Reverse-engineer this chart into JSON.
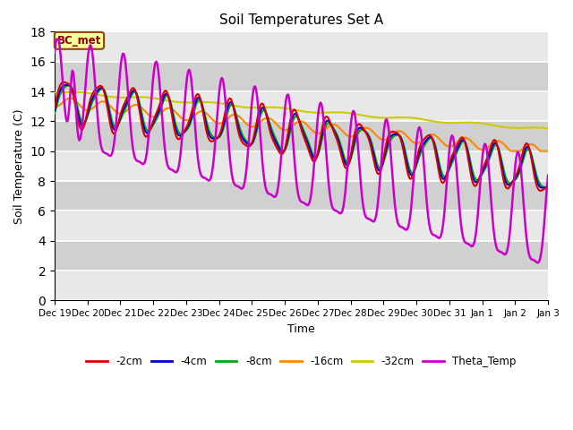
{
  "title": "Soil Temperatures Set A",
  "xlabel": "Time",
  "ylabel": "Soil Temperature (C)",
  "ylim": [
    0,
    18
  ],
  "yticks": [
    0,
    2,
    4,
    6,
    8,
    10,
    12,
    14,
    16,
    18
  ],
  "background_color": "#ffffff",
  "plot_bg_color": "#e0e0e0",
  "band_color_light": "#e8e8e8",
  "band_color_dark": "#d0d0d0",
  "annotation_text": "BC_met",
  "annotation_bg": "#ffff99",
  "annotation_border": "#8b4513",
  "annotation_text_color": "#8b0000",
  "line_colors": {
    "-2cm": "#dd0000",
    "-4cm": "#0000cc",
    "-8cm": "#00aa00",
    "-16cm": "#ff8800",
    "-32cm": "#cccc00",
    "Theta_Temp": "#cc00cc"
  },
  "tick_labels": [
    "Dec 19",
    "Dec 20",
    "Dec 21",
    "Dec 22",
    "Dec 23",
    "Dec 24",
    "Dec 25",
    "Dec 26",
    "Dec 27",
    "Dec 28",
    "Dec 29",
    "Dec 30",
    "Dec 31",
    "Jan 1",
    "Jan 2",
    "Jan 3"
  ],
  "n_points": 500
}
